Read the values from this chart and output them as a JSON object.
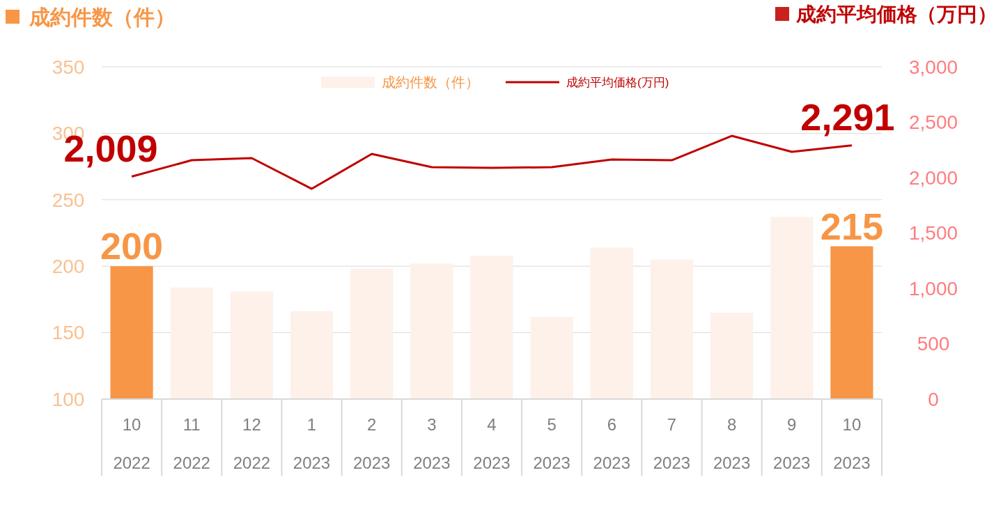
{
  "chart_data": {
    "type": "bar",
    "ylabel": "成約件数（件）",
    "y2label": "成約平均価格（万円）",
    "categories": [
      "10\n2022",
      "11\n2022",
      "12\n2022",
      "1\n2023",
      "2\n2023",
      "3\n2023",
      "4\n2023",
      "5\n2023",
      "6\n2023",
      "7\n2023",
      "8\n2023",
      "9\n2023",
      "10\n2023"
    ],
    "series": [
      {
        "name": "成約件数（件）",
        "color": "#fdf1e9",
        "colors": [
          "#f79646",
          "#fdf1e9",
          "#fdf1e9",
          "#fdf1e9",
          "#fdf1e9",
          "#fdf1e9",
          "#fdf1e9",
          "#fdf1e9",
          "#fdf1e9",
          "#fdf1e9",
          "#fdf1e9",
          "#fdf1e9",
          "#f79646"
        ],
        "values": [
          200,
          184,
          181,
          166,
          198,
          202,
          208,
          162,
          214,
          205,
          165,
          237,
          215
        ],
        "value_labels": [
          "200",
          null,
          null,
          null,
          null,
          null,
          null,
          null,
          null,
          null,
          null,
          null,
          "215"
        ]
      },
      {
        "name": "成約平均価格(万円)",
        "type": "line",
        "axis": "y2",
        "color": "#c00000",
        "values": [
          2009,
          2157,
          2176,
          1899,
          2214,
          2094,
          2088,
          2094,
          2164,
          2157,
          2377,
          2233,
          2291
        ],
        "value_labels": [
          "2,009",
          null,
          null,
          null,
          null,
          null,
          null,
          null,
          null,
          null,
          null,
          null,
          "2,291"
        ]
      }
    ],
    "ylim": [
      100,
      350
    ],
    "yticks": [
      100,
      150,
      200,
      250,
      300,
      350
    ],
    "y2lim": [
      0,
      3000
    ],
    "y2ticks": [
      {
        "value": 0,
        "label": "0"
      },
      {
        "value": 500,
        "label": "500"
      },
      {
        "value": 1000,
        "label": "1,000"
      },
      {
        "value": 1500,
        "label": "1,500"
      },
      {
        "value": 2000,
        "label": "2,000"
      },
      {
        "value": 2500,
        "label": "2,500"
      },
      {
        "value": 3000,
        "label": "3,000"
      }
    ],
    "grid": "y",
    "legend": "top",
    "marker": "none",
    "line_style": "solid"
  }
}
